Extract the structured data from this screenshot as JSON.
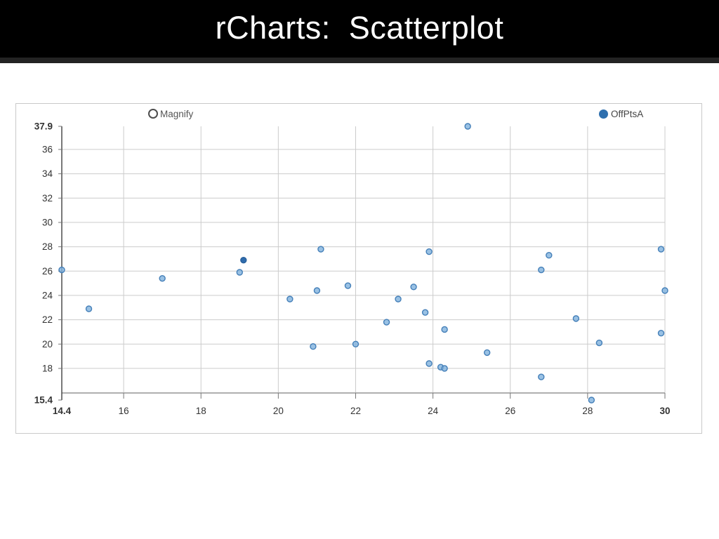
{
  "header": {
    "title": "rCharts:  Scatterplot"
  },
  "chart": {
    "magnify_label": "Magnify",
    "legend": {
      "label": "OffPtsA"
    }
  },
  "chart_data": {
    "type": "scatter",
    "title": "rCharts:  Scatterplot",
    "xlabel": "",
    "ylabel": "",
    "xlim": [
      14.4,
      30
    ],
    "ylim": [
      15.4,
      37.9
    ],
    "grid": true,
    "legend_position": "top-right",
    "x_gridlines": [
      16,
      18,
      20,
      22,
      24,
      26,
      28,
      30
    ],
    "y_gridlines": [
      16,
      18,
      20,
      22,
      24,
      26,
      28,
      30,
      32,
      34,
      36
    ],
    "x_ticks": [
      {
        "value": 14.4,
        "label": "14.4",
        "bold": true
      },
      {
        "value": 16,
        "label": "16"
      },
      {
        "value": 18,
        "label": "18"
      },
      {
        "value": 20,
        "label": "20"
      },
      {
        "value": 22,
        "label": "22"
      },
      {
        "value": 24,
        "label": "24"
      },
      {
        "value": 26,
        "label": "26"
      },
      {
        "value": 28,
        "label": "28"
      },
      {
        "value": 30,
        "label": "30",
        "bold": true
      }
    ],
    "y_ticks": [
      {
        "value": 37.9,
        "label": "37.9",
        "bold": true
      },
      {
        "value": 36,
        "label": "36"
      },
      {
        "value": 34,
        "label": "34"
      },
      {
        "value": 32,
        "label": "32"
      },
      {
        "value": 30,
        "label": "30"
      },
      {
        "value": 28,
        "label": "28"
      },
      {
        "value": 26,
        "label": "26"
      },
      {
        "value": 24,
        "label": "24"
      },
      {
        "value": 22,
        "label": "22"
      },
      {
        "value": 20,
        "label": "20"
      },
      {
        "value": 18,
        "label": "18"
      },
      {
        "value": 15.4,
        "label": "15.4",
        "bold": true
      }
    ],
    "series": [
      {
        "name": "OffPtsA",
        "dark_point": [
          19.1,
          26.9
        ],
        "points": [
          [
            14.4,
            26.1
          ],
          [
            15.1,
            22.9
          ],
          [
            17.0,
            25.4
          ],
          [
            19.0,
            25.9
          ],
          [
            19.1,
            26.9
          ],
          [
            20.3,
            23.7
          ],
          [
            20.9,
            19.8
          ],
          [
            21.0,
            24.4
          ],
          [
            21.1,
            27.8
          ],
          [
            21.8,
            24.8
          ],
          [
            22.0,
            20.0
          ],
          [
            22.8,
            21.8
          ],
          [
            23.1,
            23.7
          ],
          [
            23.5,
            24.7
          ],
          [
            23.8,
            22.6
          ],
          [
            23.9,
            18.4
          ],
          [
            23.9,
            27.6
          ],
          [
            24.2,
            18.1
          ],
          [
            24.3,
            18.0
          ],
          [
            24.3,
            21.2
          ],
          [
            24.9,
            37.9
          ],
          [
            25.4,
            19.3
          ],
          [
            26.8,
            17.3
          ],
          [
            26.8,
            26.1
          ],
          [
            27.0,
            27.3
          ],
          [
            27.7,
            22.1
          ],
          [
            28.1,
            15.4
          ],
          [
            28.3,
            20.1
          ],
          [
            29.9,
            20.9
          ],
          [
            29.9,
            27.8
          ],
          [
            30.0,
            24.4
          ]
        ]
      }
    ],
    "colors": {
      "point_fill": "#7fb2dd",
      "point_stroke": "#447fb8",
      "dark_point_fill": "#2f6cad",
      "dark_point_stroke": "#2a619d",
      "legend_dot": "#2e6fae",
      "grid": "#cccccc",
      "x_axis": "#8a8a8a",
      "y_axis": "#3f3f3f",
      "tick": "#777777",
      "label": "#333333"
    }
  }
}
